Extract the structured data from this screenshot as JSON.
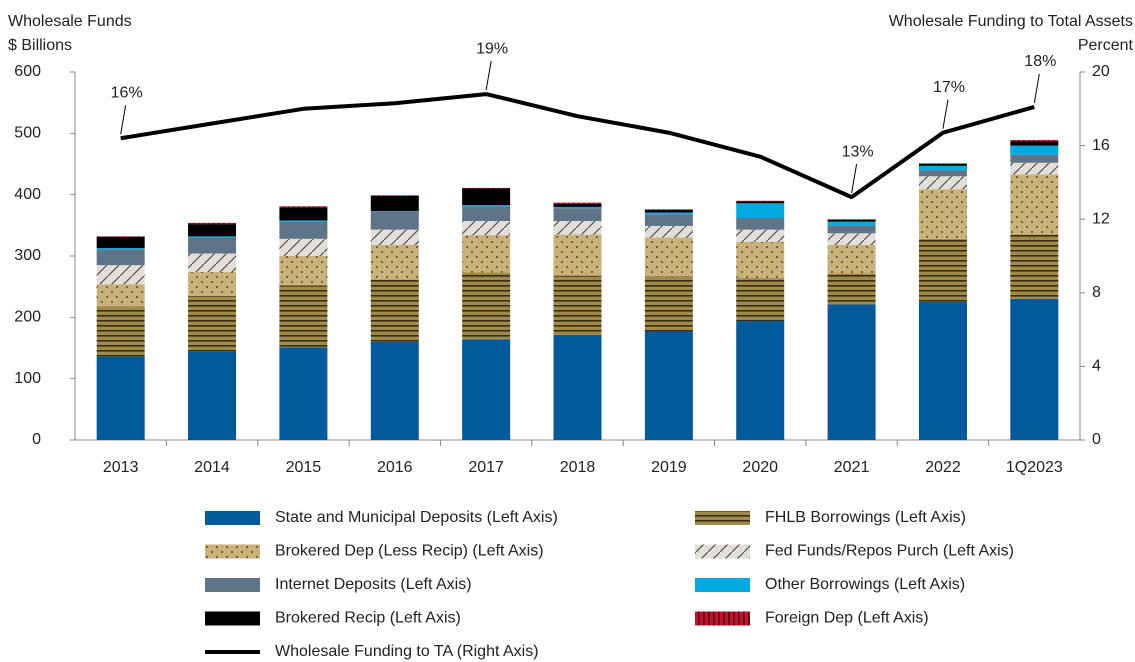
{
  "chart_data": {
    "type": "stacked-bar-line",
    "ylabel": [
      "Wholesale Funds",
      "$ Billions"
    ],
    "y2label": [
      "Wholesale Funding to Total Assets",
      "Percent"
    ],
    "categories": [
      "2013",
      "2014",
      "2015",
      "2016",
      "2017",
      "2018",
      "2019",
      "2020",
      "2021",
      "2022",
      "1Q2023"
    ],
    "ylim": [
      0,
      600
    ],
    "yticks": [
      0,
      100,
      200,
      300,
      400,
      500,
      600
    ],
    "y2lim": [
      0,
      20
    ],
    "y2ticks": [
      0,
      4,
      8,
      12,
      16,
      20
    ],
    "grid": false,
    "series": [
      {
        "name": "State and Municipal Deposits (Left Axis)",
        "color": "#005a9c",
        "pattern": "solid",
        "values": [
          136,
          144,
          151,
          160,
          164,
          170,
          177,
          194,
          221,
          225,
          230
        ]
      },
      {
        "name": "FHLB Borrowings (Left Axis)",
        "color": "#a08a4a",
        "pattern": "hlines",
        "values": [
          82,
          91,
          101,
          102,
          109,
          98,
          90,
          70,
          51,
          103,
          105
        ]
      },
      {
        "name": "Brokered Dep (Less Recip) (Left Axis)",
        "color": "#c9b27a",
        "pattern": "dots",
        "values": [
          36,
          39,
          48,
          56,
          61,
          67,
          63,
          59,
          46,
          81,
          98
        ]
      },
      {
        "name": "Fed Funds/Repos Purch (Left Axis)",
        "color": "#e2dfda",
        "pattern": "diag",
        "values": [
          31,
          30,
          28,
          25,
          23,
          22,
          19,
          20,
          19,
          21,
          19
        ]
      },
      {
        "name": "Internet Deposits (Left Axis)",
        "color": "#5f7488",
        "pattern": "solid",
        "values": [
          26,
          26,
          28,
          29,
          24,
          21,
          19,
          19,
          13,
          10,
          13
        ]
      },
      {
        "name": "Other Borrowings (Left Axis)",
        "color": "#00a9e0",
        "pattern": "solid",
        "values": [
          2,
          2,
          2,
          1,
          2,
          2,
          3,
          24,
          6,
          7,
          15
        ]
      },
      {
        "name": "Brokered Recip (Left Axis)",
        "color": "#000000",
        "pattern": "solid",
        "values": [
          18,
          20,
          21,
          25,
          27,
          5,
          4,
          3,
          3,
          3,
          7
        ]
      },
      {
        "name": "Foreign Dep (Left Axis)",
        "color": "#c8102e",
        "pattern": "vlines",
        "values": [
          1,
          2,
          2,
          1,
          1,
          2,
          1,
          1,
          1,
          1,
          2
        ]
      },
      {
        "name": "Wholesale Funding to TA (Right Axis)",
        "color": "#000000",
        "axis": "y2",
        "values": [
          16.4,
          17.2,
          18.0,
          18.3,
          18.8,
          17.6,
          16.7,
          15.4,
          13.2,
          16.7,
          18.1
        ],
        "value_labels": [
          "16%",
          null,
          null,
          null,
          "19%",
          null,
          null,
          null,
          "13%",
          "17%",
          "18%"
        ]
      }
    ]
  }
}
